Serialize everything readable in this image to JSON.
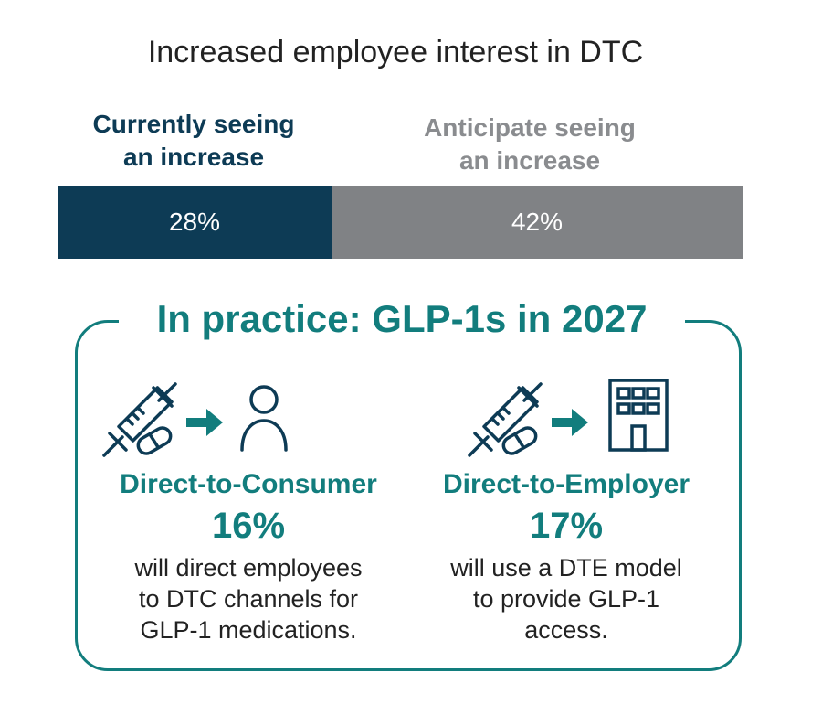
{
  "title": "Increased employee interest in DTC",
  "colors": {
    "current": "#0d3b55",
    "anticipate": "#808285",
    "teal": "#127d7d",
    "text": "#222222"
  },
  "chart_data": {
    "type": "bar",
    "title": "Increased employee interest in DTC",
    "stacked": true,
    "series": [
      {
        "name": "Currently seeing an increase",
        "values": [
          28
        ],
        "label": "28%"
      },
      {
        "name": "Anticipate seeing an increase",
        "values": [
          42
        ],
        "label": "42%"
      }
    ],
    "categories": [
      ""
    ]
  },
  "legend": {
    "current_line1": "Currently seeing",
    "current_line2": "an increase",
    "anticipate_line1": "Anticipate seeing",
    "anticipate_line2": "an increase"
  },
  "practice": {
    "title": "In practice: GLP-1s in 2027",
    "dtc": {
      "title": "Direct-to-Consumer",
      "value": "16%",
      "desc_line1": "will direct employees",
      "desc_line2": "to DTC channels for",
      "desc_line3": "GLP-1 medications.",
      "icons": [
        "syringe-icon",
        "pill-icon",
        "arrow-right-icon",
        "person-icon"
      ]
    },
    "dte": {
      "title": "Direct-to-Employer",
      "value": "17%",
      "desc_line1": "will use a DTE model",
      "desc_line2": "to provide GLP-1",
      "desc_line3": "access.",
      "icons": [
        "syringe-icon",
        "pill-icon",
        "arrow-right-icon",
        "building-icon"
      ]
    }
  }
}
